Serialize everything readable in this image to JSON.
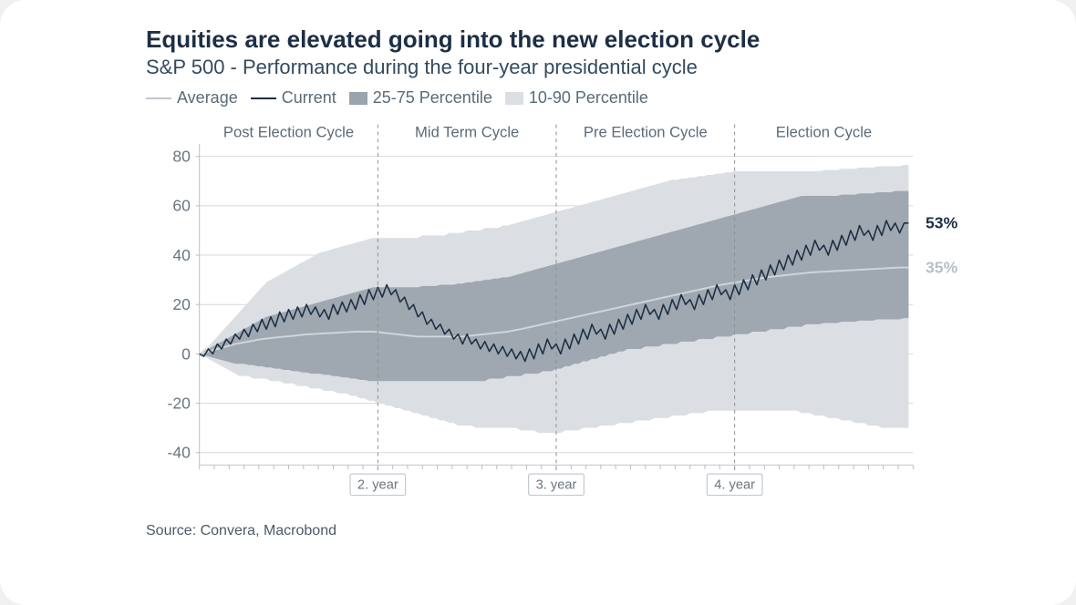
{
  "title": "Equities are elevated going into the new election cycle",
  "subtitle": "S&P 500 - Performance during the four-year presidential cycle",
  "source": "Source: Convera, Macrobond",
  "legend": {
    "average": "Average",
    "current": "Current",
    "p25_75": "25-75 Percentile",
    "p10_90": "10-90 Percentile"
  },
  "chart": {
    "type": "line-with-bands",
    "x_domain": [
      0,
      4
    ],
    "y_domain": [
      -45,
      85
    ],
    "y_ticks": [
      -40,
      -20,
      0,
      20,
      40,
      60,
      80
    ],
    "x_minor_tick_step": 0.0833333,
    "regions": [
      {
        "label": "Post Election Cycle",
        "x_start": 0,
        "x_end": 1
      },
      {
        "label": "Mid Term Cycle",
        "x_start": 1,
        "x_end": 2
      },
      {
        "label": "Pre Election Cycle",
        "x_start": 2,
        "x_end": 3
      },
      {
        "label": "Election Cycle",
        "x_start": 3,
        "x_end": 4
      }
    ],
    "year_dividers": [
      {
        "x": 1,
        "label": "2. year"
      },
      {
        "x": 2,
        "label": "3. year"
      },
      {
        "x": 3,
        "label": "4. year"
      }
    ],
    "colors": {
      "title": "#1d2f45",
      "subtitle": "#334a5e",
      "axis_text": "#6a7680",
      "grid": "#d5dade",
      "axis_line": "#b6bec5",
      "band_10_90": "#dbdfe3",
      "band_25_75": "#9fa8b0",
      "line_average": "#d0d5da",
      "line_current": "#1d2f45",
      "divider": "#888f96",
      "background": "#ffffff"
    },
    "line_widths": {
      "average": 2,
      "current": 1.6
    },
    "end_labels": [
      {
        "series": "current",
        "text": "53%",
        "y": 53,
        "color": "#1d2f45"
      },
      {
        "series": "average",
        "text": "35%",
        "y": 35,
        "color": "#b8c0c7"
      }
    ],
    "series_x_step": 0.025,
    "band_10_90": {
      "upper": [
        0,
        2,
        3,
        5,
        7,
        9,
        11,
        13,
        15,
        17,
        19,
        21,
        23,
        25,
        27,
        29,
        30,
        31,
        32,
        33,
        34,
        35,
        36,
        37,
        38,
        39,
        40,
        41,
        41.5,
        42,
        42.5,
        43,
        43.5,
        44,
        44.5,
        45,
        45.5,
        46,
        46.5,
        47,
        47,
        47,
        47,
        47,
        47,
        47,
        47,
        47,
        47,
        47,
        48,
        48,
        48,
        48,
        48,
        48,
        49,
        49,
        49,
        49,
        50,
        50,
        50,
        50,
        51,
        51,
        51,
        51,
        52,
        52,
        52.5,
        53,
        53.5,
        54,
        54.5,
        55,
        55.5,
        56,
        56.5,
        57,
        57.5,
        58,
        58.5,
        59,
        59.5,
        60,
        60.5,
        61,
        61.5,
        62,
        62.5,
        63,
        63.5,
        64,
        64.5,
        65,
        65.5,
        66,
        66.5,
        67,
        67.5,
        68,
        68.5,
        69,
        69.5,
        70,
        70.5,
        70.5,
        71,
        71,
        71.5,
        71.5,
        72,
        72,
        72.5,
        72.5,
        73,
        73,
        73.5,
        73.5,
        74,
        74,
        74,
        74,
        74,
        74,
        74,
        74,
        74,
        74,
        74,
        74,
        74,
        74,
        74,
        74,
        74,
        74,
        74,
        74,
        74.5,
        74.5,
        74.5,
        74.5,
        75,
        75,
        75,
        75,
        75.5,
        75.5,
        75.5,
        75.5,
        76,
        76,
        76,
        76,
        76,
        76,
        76.5,
        76.5
      ],
      "lower": [
        0,
        -1,
        -2,
        -3,
        -4,
        -5,
        -6,
        -7,
        -8,
        -9,
        -9,
        -9,
        -10,
        -10,
        -10,
        -10,
        -11,
        -11,
        -11,
        -12,
        -12,
        -12,
        -13,
        -13,
        -13,
        -14,
        -14,
        -14,
        -15,
        -15,
        -15,
        -16,
        -16,
        -16,
        -17,
        -17,
        -18,
        -18,
        -19,
        -19,
        -20,
        -20,
        -21,
        -21,
        -22,
        -22,
        -23,
        -23,
        -24,
        -24,
        -25,
        -25,
        -26,
        -26,
        -27,
        -27,
        -28,
        -28,
        -29,
        -29,
        -29,
        -29,
        -30,
        -30,
        -30,
        -30,
        -30,
        -30,
        -30,
        -30,
        -30,
        -30,
        -31,
        -31,
        -31,
        -31,
        -32,
        -32,
        -32,
        -32,
        -32,
        -32,
        -31,
        -31,
        -31,
        -31,
        -30,
        -30,
        -30,
        -30,
        -29,
        -29,
        -29,
        -29,
        -28,
        -28,
        -28,
        -28,
        -27,
        -27,
        -27,
        -27,
        -26,
        -26,
        -26,
        -26,
        -25,
        -25,
        -25,
        -25,
        -24,
        -24,
        -24,
        -24,
        -23,
        -23,
        -23,
        -23,
        -23,
        -23,
        -23,
        -23,
        -23,
        -23,
        -23,
        -23,
        -23,
        -23,
        -23,
        -23,
        -23,
        -23,
        -23,
        -23,
        -23,
        -24,
        -24,
        -24,
        -25,
        -25,
        -25,
        -26,
        -26,
        -26,
        -27,
        -27,
        -27,
        -28,
        -28,
        -28,
        -29,
        -29,
        -29,
        -30,
        -30,
        -30,
        -30,
        -30,
        -30,
        -30
      ]
    },
    "band_25_75": {
      "upper": [
        0,
        1,
        2,
        3,
        4,
        5,
        6,
        7,
        8,
        9,
        10,
        11,
        12,
        13,
        14,
        15,
        15.5,
        16,
        16.5,
        17,
        17.5,
        18,
        18.5,
        19,
        19.5,
        20,
        20.5,
        21,
        21.5,
        22,
        22.5,
        23,
        23.5,
        24,
        24.5,
        25,
        25.5,
        26,
        26.5,
        27,
        27,
        27,
        27,
        27,
        27,
        27,
        27,
        27,
        27,
        27,
        27.5,
        27.5,
        27.5,
        27.5,
        28,
        28,
        28,
        28,
        28.5,
        28.5,
        29,
        29,
        29.5,
        29.5,
        30,
        30,
        30.5,
        30.5,
        31,
        31,
        31.5,
        32,
        32.5,
        33,
        33.5,
        34,
        34.5,
        35,
        35.5,
        36,
        36.5,
        37,
        37.5,
        38,
        38.5,
        39,
        39.5,
        40,
        40.5,
        41,
        41.5,
        42,
        42.5,
        43,
        43.5,
        44,
        44.5,
        45,
        45.5,
        46,
        46.5,
        47,
        47.5,
        48,
        48.5,
        49,
        49.5,
        50,
        50.5,
        51,
        51.5,
        52,
        52.5,
        53,
        53.5,
        54,
        54.5,
        55,
        55.5,
        56,
        56.5,
        57,
        57.5,
        58,
        58.5,
        59,
        59.5,
        60,
        60.5,
        61,
        61.5,
        62,
        62.5,
        63,
        63.5,
        64,
        64,
        64,
        64,
        64,
        64,
        64,
        64,
        64,
        64.5,
        64.5,
        64.5,
        64.5,
        65,
        65,
        65,
        65,
        65.5,
        65.5,
        65.5,
        65.5,
        66,
        66,
        66,
        66
      ],
      "lower": [
        0,
        -0.5,
        -1,
        -1.5,
        -2,
        -2.5,
        -3,
        -3.5,
        -4,
        -4,
        -4,
        -4.5,
        -4.5,
        -5,
        -5,
        -5.5,
        -5.5,
        -6,
        -6,
        -6.5,
        -6.5,
        -7,
        -7,
        -7.5,
        -7.5,
        -8,
        -8,
        -8,
        -8.5,
        -8.5,
        -9,
        -9,
        -9.5,
        -9.5,
        -10,
        -10,
        -10.5,
        -10.5,
        -11,
        -11,
        -11,
        -11,
        -11,
        -11,
        -11,
        -11,
        -11,
        -11,
        -11,
        -11,
        -11,
        -11,
        -11,
        -11,
        -11,
        -11,
        -11,
        -11,
        -11,
        -11,
        -11,
        -11,
        -11,
        -11,
        -11,
        -10,
        -10,
        -10,
        -10,
        -9,
        -9,
        -9,
        -9,
        -8,
        -8,
        -8,
        -8,
        -7,
        -7,
        -7,
        -6,
        -6,
        -5,
        -5,
        -4,
        -4,
        -3,
        -3,
        -2,
        -2,
        -1,
        -1,
        0,
        0,
        1,
        1,
        2,
        2,
        2,
        2,
        3,
        3,
        3,
        3,
        4,
        4,
        4,
        4,
        5,
        5,
        5,
        5,
        6,
        6,
        6,
        6,
        7,
        7,
        7,
        7,
        8,
        8,
        8,
        8,
        9,
        9,
        9,
        9,
        10,
        10,
        10,
        10,
        11,
        11,
        11,
        11,
        12,
        12,
        12,
        12,
        12.5,
        12.5,
        12.5,
        12.5,
        13,
        13,
        13,
        13,
        13.5,
        13.5,
        13.5,
        13.5,
        14,
        14,
        14,
        14,
        14,
        14,
        14.5,
        14.5
      ]
    },
    "average": [
      0,
      0.5,
      1,
      1.5,
      2,
      2.5,
      3,
      3.5,
      4,
      4.3,
      4.7,
      5,
      5.3,
      5.7,
      6,
      6.2,
      6.4,
      6.6,
      6.8,
      7,
      7.1,
      7.3,
      7.5,
      7.7,
      7.9,
      8,
      8.1,
      8.2,
      8.3,
      8.4,
      8.5,
      8.6,
      8.7,
      8.8,
      8.9,
      9,
      9,
      9,
      9,
      9,
      8.8,
      8.6,
      8.4,
      8.2,
      8,
      7.8,
      7.6,
      7.4,
      7.2,
      7,
      7,
      7,
      7,
      7,
      7,
      7,
      7,
      7,
      7,
      7,
      7.2,
      7.4,
      7.6,
      7.8,
      8,
      8.2,
      8.4,
      8.6,
      8.8,
      9,
      9.3,
      9.7,
      10,
      10.4,
      10.8,
      11.2,
      11.6,
      12,
      12.4,
      12.8,
      13.2,
      13.6,
      14,
      14.4,
      14.8,
      15.2,
      15.6,
      16,
      16.4,
      16.8,
      17.2,
      17.6,
      18,
      18.4,
      18.8,
      19.2,
      19.6,
      20,
      20.4,
      20.8,
      21.2,
      21.6,
      22,
      22.4,
      22.8,
      23.2,
      23.6,
      24,
      24.4,
      24.8,
      25.2,
      25.6,
      26,
      26.4,
      26.8,
      27.2,
      27.6,
      28,
      28.3,
      28.6,
      28.9,
      29.2,
      29.5,
      29.8,
      30.1,
      30.4,
      30.7,
      31,
      31.2,
      31.4,
      31.6,
      31.8,
      32,
      32.2,
      32.4,
      32.6,
      32.8,
      33,
      33.1,
      33.2,
      33.3,
      33.4,
      33.5,
      33.6,
      33.7,
      33.8,
      33.9,
      34,
      34.1,
      34.2,
      34.3,
      34.4,
      34.5,
      34.6,
      34.7,
      34.8,
      34.9,
      35,
      35,
      35
    ],
    "current": [
      0,
      -1,
      2,
      0,
      4,
      2,
      6,
      4,
      8,
      6,
      10,
      7,
      12,
      9,
      14,
      10,
      15,
      11,
      17,
      13,
      18,
      14,
      19,
      15,
      20,
      16,
      19,
      15,
      18,
      14,
      20,
      16,
      21,
      17,
      22,
      18,
      24,
      20,
      26,
      22,
      27,
      23,
      28,
      24,
      26,
      21,
      23,
      18,
      20,
      15,
      17,
      12,
      14,
      10,
      12,
      8,
      10,
      6,
      8,
      4,
      8,
      4,
      6,
      2,
      5,
      1,
      4,
      0,
      3,
      -1,
      2,
      -2,
      1,
      -3,
      2,
      -2,
      4,
      0,
      6,
      2,
      4,
      0,
      6,
      2,
      8,
      4,
      10,
      6,
      12,
      8,
      10,
      6,
      12,
      8,
      14,
      10,
      16,
      12,
      18,
      14,
      20,
      16,
      18,
      14,
      20,
      16,
      22,
      18,
      24,
      20,
      22,
      18,
      24,
      20,
      26,
      22,
      28,
      24,
      26,
      22,
      28,
      24,
      30,
      26,
      32,
      28,
      34,
      30,
      36,
      32,
      38,
      34,
      40,
      36,
      42,
      38,
      44,
      40,
      46,
      42,
      44,
      40,
      46,
      42,
      48,
      44,
      50,
      46,
      52,
      48,
      50,
      46,
      52,
      48,
      54,
      50,
      53,
      49,
      53,
      53
    ]
  }
}
